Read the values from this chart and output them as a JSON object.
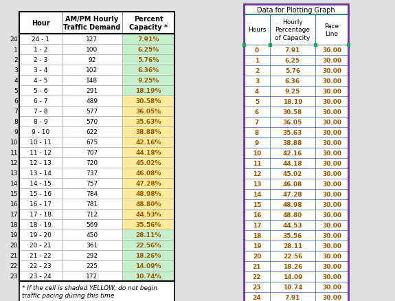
{
  "left_table": {
    "row_numbers": [
      24,
      1,
      2,
      3,
      4,
      5,
      6,
      7,
      8,
      9,
      10,
      11,
      12,
      13,
      14,
      15,
      16,
      17,
      18,
      19,
      20,
      21,
      22,
      23
    ],
    "hours": [
      "24 - 1",
      "1 - 2",
      "2 - 3",
      "3 - 4",
      "4 - 5",
      "5 - 6",
      "6 - 7",
      "7 - 8",
      "8 - 9",
      "9 - 10",
      "10 - 11",
      "11 - 12",
      "12 - 13",
      "13 - 14",
      "14 - 15",
      "15 - 16",
      "16 - 17",
      "17 - 18",
      "18 - 19",
      "19 - 20",
      "20 - 21",
      "21 - 22",
      "22 - 23",
      "23 - 24"
    ],
    "traffic_demand": [
      127,
      100,
      92,
      102,
      148,
      291,
      489,
      577,
      570,
      622,
      675,
      707,
      720,
      737,
      757,
      784,
      781,
      712,
      569,
      450,
      361,
      292,
      225,
      172
    ],
    "percent_capacity": [
      "7.91%",
      "6.25%",
      "5.76%",
      "6.36%",
      "9.25%",
      "18.19%",
      "30.58%",
      "36.05%",
      "35.63%",
      "38.88%",
      "42.16%",
      "44.18%",
      "45.02%",
      "46.08%",
      "47.28%",
      "48.98%",
      "48.80%",
      "44.53%",
      "35.56%",
      "28.11%",
      "22.56%",
      "18.26%",
      "14.09%",
      "10.74%"
    ],
    "cell_colors": [
      "#C6EFCE",
      "#C6EFCE",
      "#C6EFCE",
      "#C6EFCE",
      "#C6EFCE",
      "#C6EFCE",
      "#FFEB9C",
      "#FFEB9C",
      "#FFEB9C",
      "#FFEB9C",
      "#FFEB9C",
      "#FFEB9C",
      "#FFEB9C",
      "#FFEB9C",
      "#FFEB9C",
      "#FFEB9C",
      "#FFEB9C",
      "#FFEB9C",
      "#FFEB9C",
      "#C6EFCE",
      "#C6EFCE",
      "#C6EFCE",
      "#C6EFCE",
      "#C6EFCE"
    ],
    "col_headers": [
      "Hour",
      "AM/PM Hourly\nTraffic Demand",
      "Percent\nCapacity *"
    ],
    "note": "* If the cell is shaded YELLOW, do not begin\ntraffic pacing during this time"
  },
  "right_table": {
    "title": "Data for Plotting Graph",
    "col_headers": [
      "Hours",
      "Hourly\nPercentage\nof Capacity",
      "Pace\nLine"
    ],
    "hours": [
      0,
      1,
      2,
      3,
      4,
      5,
      6,
      7,
      8,
      9,
      10,
      11,
      12,
      13,
      14,
      15,
      16,
      17,
      18,
      19,
      20,
      21,
      22,
      23,
      24
    ],
    "hourly_pct": [
      7.91,
      6.25,
      5.76,
      6.36,
      9.25,
      18.19,
      30.58,
      36.05,
      35.63,
      38.88,
      42.16,
      44.18,
      45.02,
      46.08,
      47.28,
      48.98,
      48.8,
      44.53,
      35.56,
      28.11,
      22.56,
      18.26,
      14.09,
      10.74,
      7.91
    ],
    "pace_line": [
      30.0,
      30.0,
      30.0,
      30.0,
      30.0,
      30.0,
      30.0,
      30.0,
      30.0,
      30.0,
      30.0,
      30.0,
      30.0,
      30.0,
      30.0,
      30.0,
      30.0,
      30.0,
      30.0,
      30.0,
      30.0,
      30.0,
      30.0,
      30.0,
      30.0
    ],
    "outer_border_color": "#7030A0",
    "inner_border_color": "#4472C4",
    "title_border_color": "#00B050"
  },
  "bg_color": "#FFFFFF",
  "outer_bg": "#E0E0E0",
  "text_color": "#9C5700",
  "header_text_color": "#000000",
  "grid_line_color": "#BFBFBF"
}
